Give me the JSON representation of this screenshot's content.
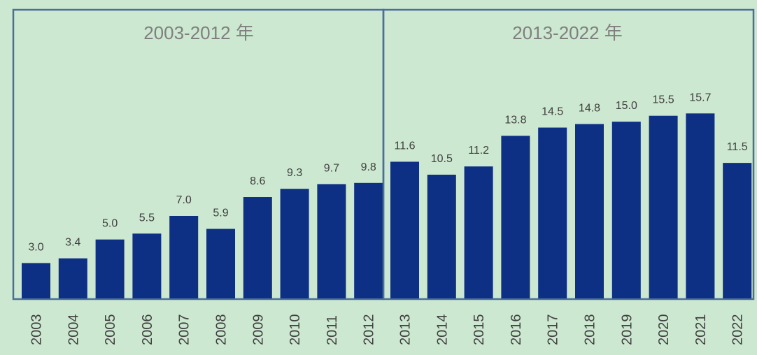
{
  "colors": {
    "background": "#cce8d0",
    "bar": "#0d2f84",
    "frame": "#4a6f9b",
    "title_text": "#7f7f7f",
    "label_text": "#404040"
  },
  "chart_data": [
    {
      "type": "bar",
      "title": "2003-2012 年",
      "categories": [
        "2003",
        "2004",
        "2005",
        "2006",
        "2007",
        "2008",
        "2009",
        "2010",
        "2011",
        "2012"
      ],
      "values": [
        3.0,
        3.4,
        5.0,
        5.5,
        7.0,
        5.9,
        8.6,
        9.3,
        9.7,
        9.8
      ],
      "value_labels": [
        "3.0",
        "3.4",
        "5.0",
        "5.5",
        "7.0",
        "5.9",
        "8.6",
        "9.3",
        "9.7",
        "9.8"
      ],
      "ylim": [
        0,
        22.6
      ],
      "grid": false,
      "x_tick_rotation": "vertical"
    },
    {
      "type": "bar",
      "title": "2013-2022 年",
      "categories": [
        "2013",
        "2014",
        "2015",
        "2016",
        "2017",
        "2018",
        "2019",
        "2020",
        "2021",
        "2022"
      ],
      "values": [
        11.6,
        10.5,
        11.2,
        13.8,
        14.5,
        14.8,
        15.0,
        15.5,
        15.7,
        11.5
      ],
      "value_labels": [
        "11.6",
        "10.5",
        "11.2",
        "13.8",
        "14.5",
        "14.8",
        "15.0",
        "15.5",
        "15.7",
        "11.5"
      ],
      "ylim": [
        0,
        22.6
      ],
      "grid": false,
      "x_tick_rotation": "vertical"
    }
  ]
}
